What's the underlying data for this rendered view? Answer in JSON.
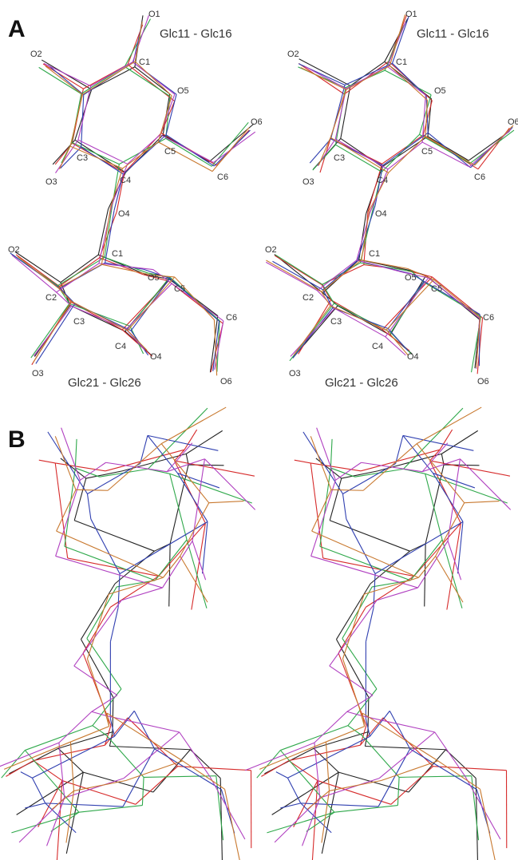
{
  "panels": [
    {
      "label": "A",
      "views": [
        {
          "titles": [
            "Glc11 - Glc16",
            "Glc21 - Glc26"
          ],
          "atoms": [
            "O1",
            "C1",
            "O2",
            "O5",
            "O6",
            "C5",
            "C3",
            "C4",
            "O3",
            "C6",
            "O4",
            "O2",
            "C1",
            "O5",
            "C5",
            "C2",
            "C3",
            "C6",
            "C4",
            "O4",
            "O3",
            "O6"
          ]
        },
        {
          "titles": [
            "Glc11 - Glc16",
            "Glc21 - Glc26"
          ],
          "atoms": [
            "O1",
            "C1",
            "O2",
            "O5",
            "O6",
            "C5",
            "C3",
            "C4",
            "O3",
            "C6",
            "O4",
            "O2",
            "C1",
            "O5",
            "C5",
            "C2",
            "C3",
            "C6",
            "C4",
            "O4",
            "O3",
            "O6"
          ]
        }
      ]
    },
    {
      "label": "B"
    }
  ]
}
